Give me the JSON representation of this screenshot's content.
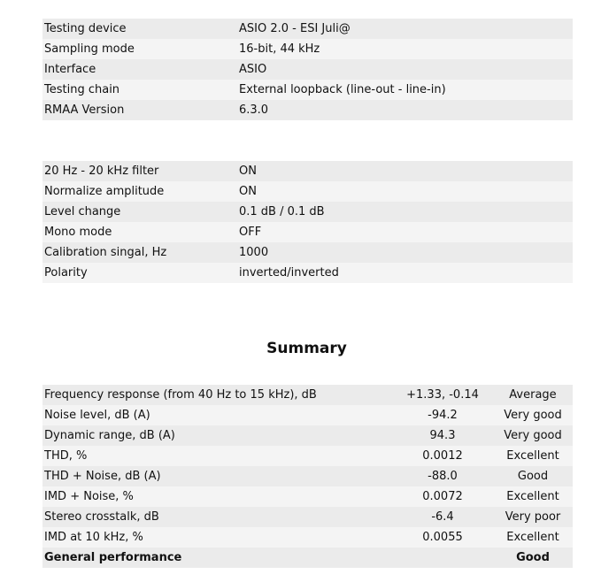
{
  "setup": [
    {
      "label": "Testing device",
      "value": "ASIO 2.0 - ESI Juli@"
    },
    {
      "label": "Sampling mode",
      "value": "16-bit, 44 kHz"
    },
    {
      "label": "Interface",
      "value": "ASIO"
    },
    {
      "label": "Testing chain",
      "value": "External loopback (line-out - line-in)"
    },
    {
      "label": "RMAA Version",
      "value": "6.3.0"
    }
  ],
  "options": [
    {
      "label": "20 Hz - 20 kHz filter",
      "value": "ON"
    },
    {
      "label": "Normalize amplitude",
      "value": "ON"
    },
    {
      "label": "Level change",
      "value": "0.1 dB / 0.1 dB"
    },
    {
      "label": "Mono mode",
      "value": "OFF"
    },
    {
      "label": "Calibration singal, Hz",
      "value": "1000"
    },
    {
      "label": "Polarity",
      "value": "inverted/inverted"
    }
  ],
  "summary": {
    "title": "Summary",
    "rows": [
      {
        "label": "Frequency response (from 40 Hz to 15 kHz), dB",
        "value": "+1.33, -0.14",
        "rating": "Average"
      },
      {
        "label": "Noise level, dB (A)",
        "value": "-94.2",
        "rating": "Very good"
      },
      {
        "label": "Dynamic range, dB (A)",
        "value": "94.3",
        "rating": "Very good"
      },
      {
        "label": "THD, %",
        "value": "0.0012",
        "rating": "Excellent"
      },
      {
        "label": "THD + Noise, dB (A)",
        "value": "-88.0",
        "rating": "Good"
      },
      {
        "label": "IMD + Noise, %",
        "value": "0.0072",
        "rating": "Excellent"
      },
      {
        "label": "Stereo crosstalk, dB",
        "value": "-6.4",
        "rating": "Very poor"
      },
      {
        "label": "IMD at 10 kHz, %",
        "value": "0.0055",
        "rating": "Excellent"
      },
      {
        "label": "General performance",
        "value": "",
        "rating": "Good"
      }
    ]
  }
}
